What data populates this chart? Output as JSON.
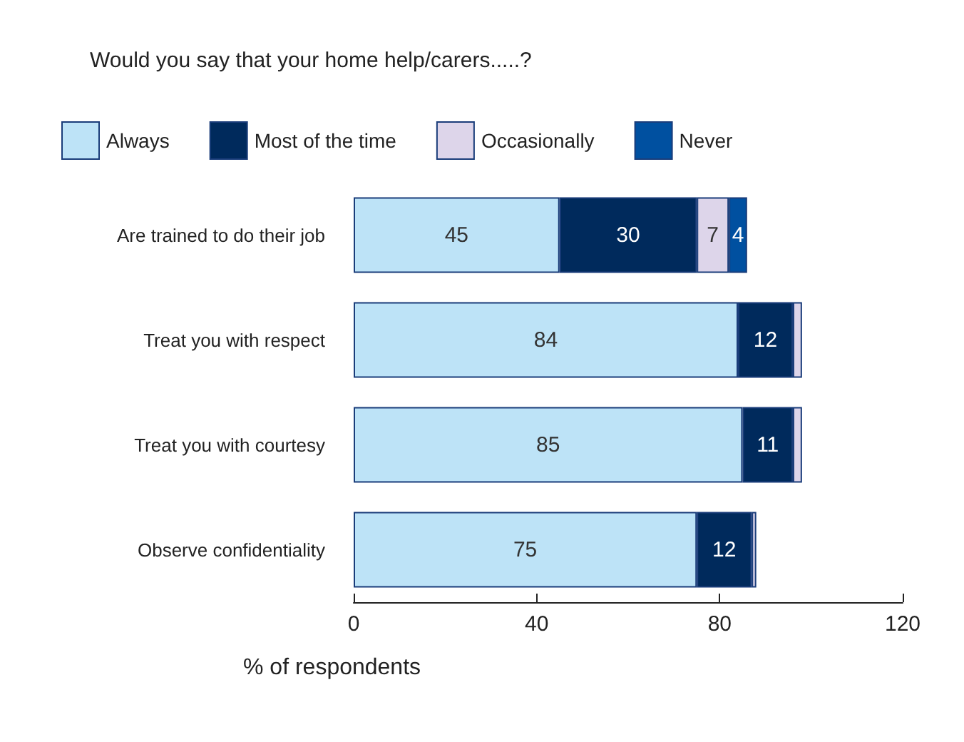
{
  "chart_data": {
    "type": "bar",
    "orientation": "horizontal",
    "stacked": true,
    "title": "Would you say that your home help/carers.....?",
    "xlabel": "% of respondents",
    "categories": [
      "Are trained to do their job",
      "Treat you with respect",
      "Treat you with courtesy",
      "Observe confidentiality"
    ],
    "series": [
      {
        "name": "Always",
        "color": "#bde3f7",
        "values": [
          45,
          84,
          85,
          75
        ],
        "value_labels": [
          "45",
          "84",
          "85",
          "75"
        ]
      },
      {
        "name": "Most of the time",
        "color": "#002a5c",
        "values": [
          30,
          12,
          11,
          12
        ],
        "value_labels": [
          "30",
          "12",
          "11",
          "12"
        ]
      },
      {
        "name": "Occasionally",
        "color": "#ddd5ea",
        "values": [
          7,
          2,
          2,
          1
        ],
        "value_labels": [
          "7",
          null,
          null,
          null
        ]
      },
      {
        "name": "Never",
        "color": "#0050a0",
        "values": [
          4,
          null,
          null,
          null
        ],
        "value_labels": [
          "4",
          null,
          null,
          null
        ]
      }
    ],
    "xlim": [
      0,
      120
    ],
    "xticks": [
      0,
      40,
      80,
      120
    ],
    "grid": false,
    "legend": "top left"
  }
}
